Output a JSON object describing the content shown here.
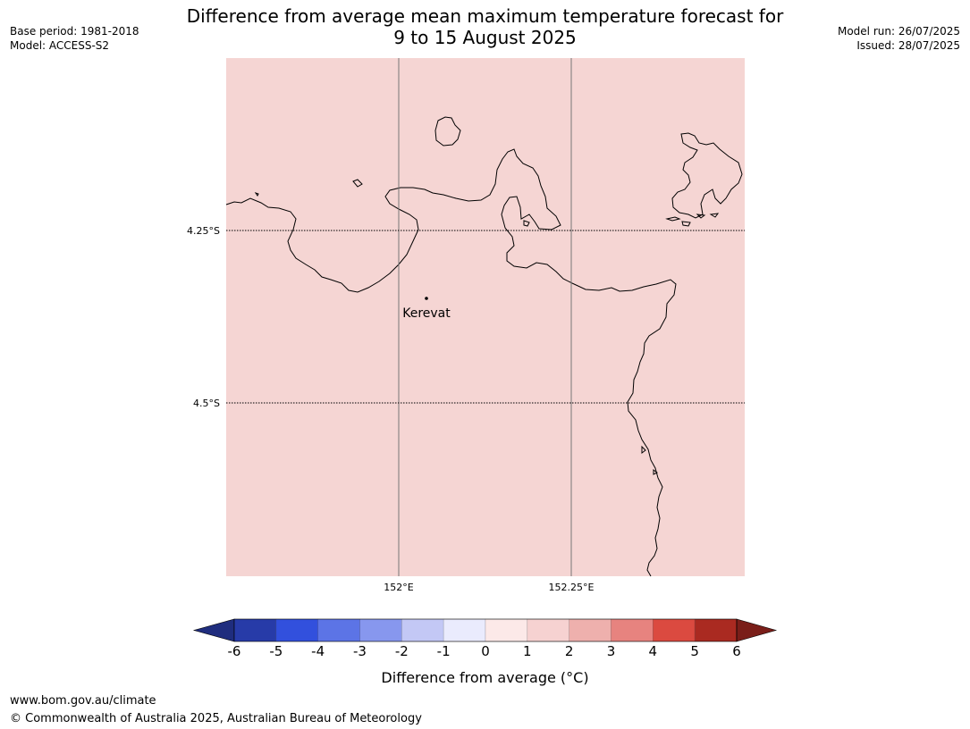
{
  "title_line1": "Difference from average mean maximum temperature forecast for",
  "title_line2": "9 to 15 August 2025",
  "meta": {
    "base_period": "Base period: 1981-2018",
    "model": "Model: ACCESS-S2",
    "model_run": "Model run: 26/07/2025",
    "issued": "Issued: 28/07/2025"
  },
  "map": {
    "fill_color": "#f5d5d3",
    "place_label": "Kerevat",
    "lat_labels": [
      "4.25°S",
      "4.5°S"
    ],
    "lon_labels": [
      "152°E",
      "152.25°E"
    ]
  },
  "colorbar": {
    "label": "Difference from average (°C)",
    "ticks": [
      "-6",
      "-5",
      "-4",
      "-3",
      "-2",
      "-1",
      "0",
      "1",
      "2",
      "3",
      "4",
      "5",
      "6"
    ],
    "colors": [
      "#273ba8",
      "#3250dd",
      "#5c74e6",
      "#8797ee",
      "#c3c8f5",
      "#eaebfd",
      "#fce9e8",
      "#f6d2d1",
      "#eeb0ad",
      "#e7837f",
      "#db4a40",
      "#aa2a21"
    ],
    "under_color": "#1f2d7e",
    "over_color": "#7a1e19"
  },
  "footer": {
    "url": "www.bom.gov.au/climate",
    "copyright": "© Commonwealth of Australia 2025, Australian Bureau of Meteorology"
  }
}
